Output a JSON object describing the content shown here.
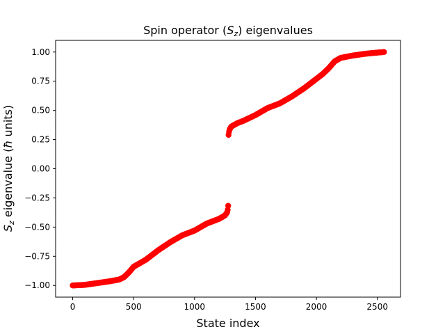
{
  "chart_data": {
    "type": "scatter",
    "title": "Spin operator (S_z) eigenvalues",
    "title_parts": {
      "prefix": "Spin operator (",
      "var": "S",
      "sub": "z",
      "suffix": ") eigenvalues"
    },
    "xlabel": "State index",
    "ylabel_parts": {
      "var": "S",
      "sub": "z",
      "text": " eigenvalue (",
      "hbar": "ħ",
      "suffix": " units)"
    },
    "xlim": [
      -140,
      2690
    ],
    "ylim": [
      -1.1,
      1.1
    ],
    "x_ticks": [
      0,
      500,
      1000,
      1500,
      2000,
      2500
    ],
    "x_tick_labels": [
      "0",
      "500",
      "1000",
      "1500",
      "2000",
      "2500"
    ],
    "y_ticks": [
      -1.0,
      -0.75,
      -0.5,
      -0.25,
      0.0,
      0.25,
      0.5,
      0.75,
      1.0
    ],
    "y_tick_labels": [
      "−1.00",
      "−0.75",
      "−0.50",
      "−0.25",
      "0.00",
      "0.25",
      "0.50",
      "0.75",
      "1.00"
    ],
    "grid": false,
    "marker_color": "#ff0000",
    "series": [
      {
        "segments": [
          {
            "x": [
              0,
              100,
              200,
              300,
              380,
              420,
              460,
              500,
              600,
              700,
              800,
              900,
              1000,
              1100,
              1200,
              1250,
              1270,
              1278
            ],
            "y": [
              -1.0,
              -0.995,
              -0.98,
              -0.965,
              -0.95,
              -0.93,
              -0.89,
              -0.84,
              -0.78,
              -0.7,
              -0.63,
              -0.57,
              -0.53,
              -0.47,
              -0.43,
              -0.4,
              -0.37,
              -0.3
            ]
          },
          {
            "x": [
              1279,
              1285,
              1300,
              1350,
              1400,
              1500,
              1600,
              1700,
              1800,
              1900,
              2000,
              2050,
              2100,
              2150,
              2200,
              2300,
              2400,
              2500,
              2555
            ],
            "y": [
              0.29,
              0.33,
              0.36,
              0.39,
              0.41,
              0.46,
              0.52,
              0.56,
              0.62,
              0.69,
              0.77,
              0.81,
              0.86,
              0.92,
              0.95,
              0.97,
              0.985,
              0.995,
              1.0
            ]
          }
        ]
      }
    ]
  }
}
